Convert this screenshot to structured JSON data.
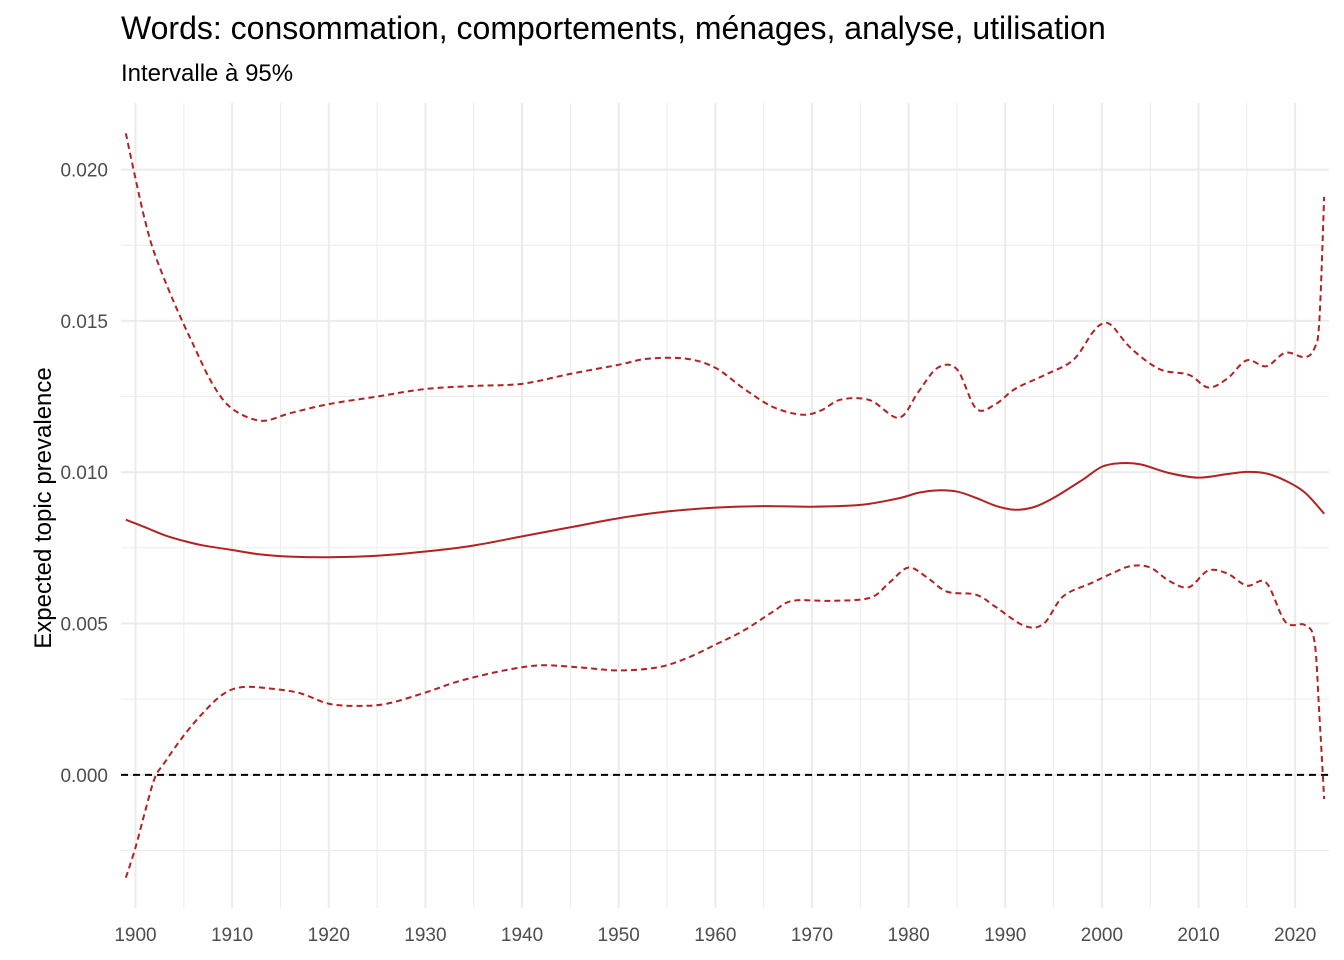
{
  "chart_data": {
    "type": "line",
    "title": "Words: consommation, comportements, ménages, analyse, utilisation",
    "subtitle": "Intervalle à 95%",
    "xlabel": "",
    "ylabel": "Expected topic prevalence",
    "xlim": [
      1898.5,
      2023.5
    ],
    "ylim": [
      -0.0044,
      0.0222
    ],
    "x_ticks": [
      "1900",
      "1910",
      "1920",
      "1930",
      "1940",
      "1950",
      "1960",
      "1970",
      "1980",
      "1990",
      "2000",
      "2010",
      "2020"
    ],
    "y_ticks": [
      "0.000",
      "0.005",
      "0.010",
      "0.015",
      "0.020"
    ],
    "grid": true,
    "reference_line": {
      "y": 0,
      "style": "dashed",
      "color": "#000000"
    },
    "colors": {
      "series": "#b22222",
      "grid": "#ebebeb",
      "tick_text": "#4d4d4d"
    },
    "series": [
      {
        "style": "solid",
        "points": [
          [
            1899,
            0.00843
          ],
          [
            1901,
            0.00818
          ],
          [
            1903,
            0.00792
          ],
          [
            1905,
            0.00773
          ],
          [
            1907,
            0.00758
          ],
          [
            1910,
            0.00743
          ],
          [
            1913,
            0.00728
          ],
          [
            1916,
            0.00721
          ],
          [
            1920,
            0.00719
          ],
          [
            1925,
            0.00724
          ],
          [
            1930,
            0.00738
          ],
          [
            1935,
            0.00758
          ],
          [
            1940,
            0.00788
          ],
          [
            1945,
            0.00818
          ],
          [
            1950,
            0.00848
          ],
          [
            1955,
            0.0087
          ],
          [
            1960,
            0.00883
          ],
          [
            1965,
            0.00888
          ],
          [
            1970,
            0.00886
          ],
          [
            1975,
            0.00892
          ],
          [
            1979,
            0.00914
          ],
          [
            1981,
            0.00932
          ],
          [
            1983,
            0.0094
          ],
          [
            1985,
            0.00936
          ],
          [
            1987,
            0.00915
          ],
          [
            1989,
            0.00889
          ],
          [
            1991,
            0.00876
          ],
          [
            1993,
            0.00885
          ],
          [
            1995,
            0.00915
          ],
          [
            1998,
            0.00975
          ],
          [
            2000,
            0.01018
          ],
          [
            2002,
            0.0103
          ],
          [
            2004,
            0.01026
          ],
          [
            2007,
            0.00997
          ],
          [
            2010,
            0.00982
          ],
          [
            2013,
            0.00994
          ],
          [
            2015,
            0.01001
          ],
          [
            2017,
            0.00996
          ],
          [
            2019,
            0.00972
          ],
          [
            2021,
            0.00933
          ],
          [
            2023,
            0.00863
          ]
        ]
      },
      {
        "style": "dashed",
        "points": [
          [
            1899,
            0.0212
          ],
          [
            1900,
            0.0197
          ],
          [
            1901,
            0.0183
          ],
          [
            1902,
            0.0172
          ],
          [
            1904,
            0.0156
          ],
          [
            1906,
            0.0142
          ],
          [
            1908,
            0.0129
          ],
          [
            1910,
            0.0121
          ],
          [
            1913,
            0.0117
          ],
          [
            1916,
            0.01195
          ],
          [
            1920,
            0.01225
          ],
          [
            1925,
            0.0125
          ],
          [
            1930,
            0.01275
          ],
          [
            1935,
            0.01285
          ],
          [
            1940,
            0.01292
          ],
          [
            1945,
            0.01325
          ],
          [
            1950,
            0.01355
          ],
          [
            1953,
            0.01375
          ],
          [
            1957,
            0.01375
          ],
          [
            1960,
            0.01345
          ],
          [
            1963,
            0.01275
          ],
          [
            1966,
            0.01215
          ],
          [
            1969,
            0.0119
          ],
          [
            1971,
            0.01205
          ],
          [
            1973,
            0.0124
          ],
          [
            1976,
            0.01238
          ],
          [
            1979,
            0.0118
          ],
          [
            1981,
            0.01265
          ],
          [
            1983,
            0.01345
          ],
          [
            1985,
            0.0134
          ],
          [
            1987,
            0.0121
          ],
          [
            1989,
            0.01225
          ],
          [
            1991,
            0.01275
          ],
          [
            1994,
            0.0132
          ],
          [
            1997,
            0.0137
          ],
          [
            1999,
            0.0146
          ],
          [
            2000,
            0.0149
          ],
          [
            2001,
            0.01485
          ],
          [
            2003,
            0.0141
          ],
          [
            2006,
            0.0134
          ],
          [
            2009,
            0.01322
          ],
          [
            2011,
            0.0128
          ],
          [
            2013,
            0.0131
          ],
          [
            2015,
            0.0137
          ],
          [
            2017,
            0.0135
          ],
          [
            2019,
            0.01395
          ],
          [
            2021,
            0.0138
          ],
          [
            2022,
            0.0141
          ],
          [
            2022.5,
            0.015
          ],
          [
            2023,
            0.0191
          ]
        ]
      },
      {
        "style": "dashed",
        "points": [
          [
            1899,
            -0.0034
          ],
          [
            1900,
            -0.0024
          ],
          [
            1901,
            -0.0012
          ],
          [
            1902,
            -0.0001
          ],
          [
            1903,
            0.0004
          ],
          [
            1905,
            0.0013
          ],
          [
            1907,
            0.00205
          ],
          [
            1909,
            0.00265
          ],
          [
            1911,
            0.0029
          ],
          [
            1914,
            0.00285
          ],
          [
            1917,
            0.0027
          ],
          [
            1920,
            0.00235
          ],
          [
            1923,
            0.00228
          ],
          [
            1926,
            0.00235
          ],
          [
            1930,
            0.00272
          ],
          [
            1933,
            0.00305
          ],
          [
            1936,
            0.0033
          ],
          [
            1939,
            0.0035
          ],
          [
            1942,
            0.00362
          ],
          [
            1946,
            0.00355
          ],
          [
            1950,
            0.00345
          ],
          [
            1954,
            0.00355
          ],
          [
            1957,
            0.00385
          ],
          [
            1960,
            0.0043
          ],
          [
            1963,
            0.00478
          ],
          [
            1966,
            0.0054
          ],
          [
            1968,
            0.00575
          ],
          [
            1972,
            0.00575
          ],
          [
            1976,
            0.00585
          ],
          [
            1978,
            0.00635
          ],
          [
            1980,
            0.00685
          ],
          [
            1982,
            0.0065
          ],
          [
            1984,
            0.00605
          ],
          [
            1987,
            0.00595
          ],
          [
            1989,
            0.00555
          ],
          [
            1992,
            0.00492
          ],
          [
            1994,
            0.005
          ],
          [
            1996,
            0.0059
          ],
          [
            1999,
            0.00635
          ],
          [
            2001,
            0.00665
          ],
          [
            2003,
            0.0069
          ],
          [
            2005,
            0.00685
          ],
          [
            2007,
            0.0064
          ],
          [
            2009,
            0.0062
          ],
          [
            2011,
            0.00675
          ],
          [
            2013,
            0.00665
          ],
          [
            2015,
            0.00625
          ],
          [
            2017,
            0.00635
          ],
          [
            2019,
            0.00505
          ],
          [
            2021,
            0.00495
          ],
          [
            2022,
            0.0044
          ],
          [
            2022.5,
            0.002
          ],
          [
            2023,
            -0.0008
          ]
        ]
      }
    ]
  }
}
